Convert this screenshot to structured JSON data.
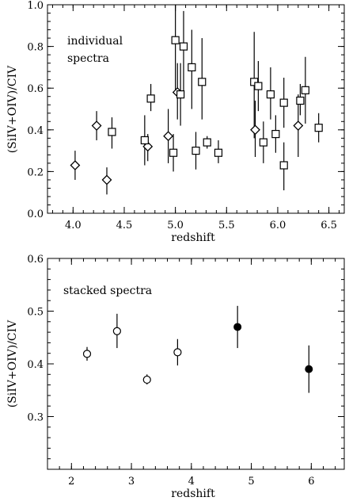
{
  "chart_data": [
    {
      "type": "scatter",
      "title": "",
      "annotation": [
        "individual",
        "spectra"
      ],
      "xlabel": "redshift",
      "ylabel": "(SiIV+OIV)/CIV",
      "xlim": [
        3.75,
        6.65
      ],
      "ylim": [
        0,
        1.0
      ],
      "xticks": [
        4.0,
        4.5,
        5.0,
        5.5,
        6.0,
        6.5
      ],
      "xtick_labels": [
        "4.0",
        "4.5",
        "5.0",
        "5.5",
        "6.0",
        "6.5"
      ],
      "yticks": [
        0.0,
        0.2,
        0.4,
        0.6,
        0.8,
        1.0
      ],
      "ytick_labels": [
        "0.0",
        "0.2",
        "0.4",
        "0.6",
        "0.8",
        "1.0"
      ],
      "grid": false,
      "series": [
        {
          "marker": "diamond",
          "points": [
            {
              "x": 4.02,
              "y": 0.23,
              "lo": 0.16,
              "hi": 0.3
            },
            {
              "x": 4.23,
              "y": 0.42,
              "lo": 0.35,
              "hi": 0.49
            },
            {
              "x": 4.33,
              "y": 0.16,
              "lo": 0.09,
              "hi": 0.22
            },
            {
              "x": 4.73,
              "y": 0.32,
              "lo": 0.25,
              "hi": 0.38
            },
            {
              "x": 4.93,
              "y": 0.37,
              "lo": 0.24,
              "hi": 0.5
            },
            {
              "x": 5.02,
              "y": 0.58,
              "lo": 0.45,
              "hi": 0.72
            },
            {
              "x": 5.78,
              "y": 0.4,
              "lo": 0.27,
              "hi": 0.54
            },
            {
              "x": 6.2,
              "y": 0.42,
              "lo": 0.27,
              "hi": 0.57
            }
          ]
        },
        {
          "marker": "square",
          "points": [
            {
              "x": 4.38,
              "y": 0.39,
              "lo": 0.31,
              "hi": 0.46
            },
            {
              "x": 4.7,
              "y": 0.35,
              "lo": 0.23,
              "hi": 0.47
            },
            {
              "x": 4.76,
              "y": 0.55,
              "lo": 0.49,
              "hi": 0.62
            },
            {
              "x": 4.98,
              "y": 0.29,
              "lo": 0.2,
              "hi": 0.38
            },
            {
              "x": 5.0,
              "y": 0.83,
              "lo": 0.59,
              "hi": 1.0
            },
            {
              "x": 5.05,
              "y": 0.57,
              "lo": 0.42,
              "hi": 0.72
            },
            {
              "x": 5.08,
              "y": 0.8,
              "lo": 0.56,
              "hi": 0.97
            },
            {
              "x": 5.16,
              "y": 0.7,
              "lo": 0.5,
              "hi": 0.88
            },
            {
              "x": 5.2,
              "y": 0.3,
              "lo": 0.21,
              "hi": 0.39
            },
            {
              "x": 5.26,
              "y": 0.63,
              "lo": 0.45,
              "hi": 0.84
            },
            {
              "x": 5.31,
              "y": 0.34,
              "lo": 0.31,
              "hi": 0.37
            },
            {
              "x": 5.42,
              "y": 0.29,
              "lo": 0.24,
              "hi": 0.35
            },
            {
              "x": 5.77,
              "y": 0.63,
              "lo": 0.36,
              "hi": 0.87
            },
            {
              "x": 5.81,
              "y": 0.61,
              "lo": 0.49,
              "hi": 0.73
            },
            {
              "x": 5.86,
              "y": 0.34,
              "lo": 0.24,
              "hi": 0.44
            },
            {
              "x": 5.93,
              "y": 0.57,
              "lo": 0.45,
              "hi": 0.7
            },
            {
              "x": 5.98,
              "y": 0.38,
              "lo": 0.29,
              "hi": 0.47
            },
            {
              "x": 6.06,
              "y": 0.53,
              "lo": 0.41,
              "hi": 0.65
            },
            {
              "x": 6.06,
              "y": 0.23,
              "lo": 0.11,
              "hi": 0.34
            },
            {
              "x": 6.22,
              "y": 0.54,
              "lo": 0.47,
              "hi": 0.62
            },
            {
              "x": 6.27,
              "y": 0.59,
              "lo": 0.43,
              "hi": 0.75
            },
            {
              "x": 6.4,
              "y": 0.41,
              "lo": 0.34,
              "hi": 0.48
            }
          ]
        }
      ]
    },
    {
      "type": "scatter",
      "title": "",
      "annotation": [
        "stacked spectra"
      ],
      "xlabel": "redshift",
      "ylabel": "(SiIV+OIV)/CIV",
      "xlim": [
        1.6,
        6.55
      ],
      "ylim": [
        0.2,
        0.6
      ],
      "xticks": [
        2,
        3,
        4,
        5,
        6
      ],
      "xtick_labels": [
        "2",
        "3",
        "4",
        "5",
        "6"
      ],
      "yticks": [
        0.3,
        0.4,
        0.5,
        0.6
      ],
      "ytick_labels": [
        "0.3",
        "0.4",
        "0.5",
        "0.6"
      ],
      "grid": false,
      "series": [
        {
          "marker": "open-circle",
          "points": [
            {
              "x": 2.26,
              "y": 0.419,
              "lo": 0.406,
              "hi": 0.432
            },
            {
              "x": 2.76,
              "y": 0.462,
              "lo": 0.43,
              "hi": 0.495
            },
            {
              "x": 3.26,
              "y": 0.37,
              "lo": 0.361,
              "hi": 0.38
            },
            {
              "x": 3.77,
              "y": 0.422,
              "lo": 0.397,
              "hi": 0.447
            }
          ]
        },
        {
          "marker": "filled-circle",
          "points": [
            {
              "x": 4.77,
              "y": 0.47,
              "lo": 0.43,
              "hi": 0.51
            },
            {
              "x": 5.96,
              "y": 0.39,
              "lo": 0.345,
              "hi": 0.435
            }
          ]
        }
      ]
    }
  ]
}
